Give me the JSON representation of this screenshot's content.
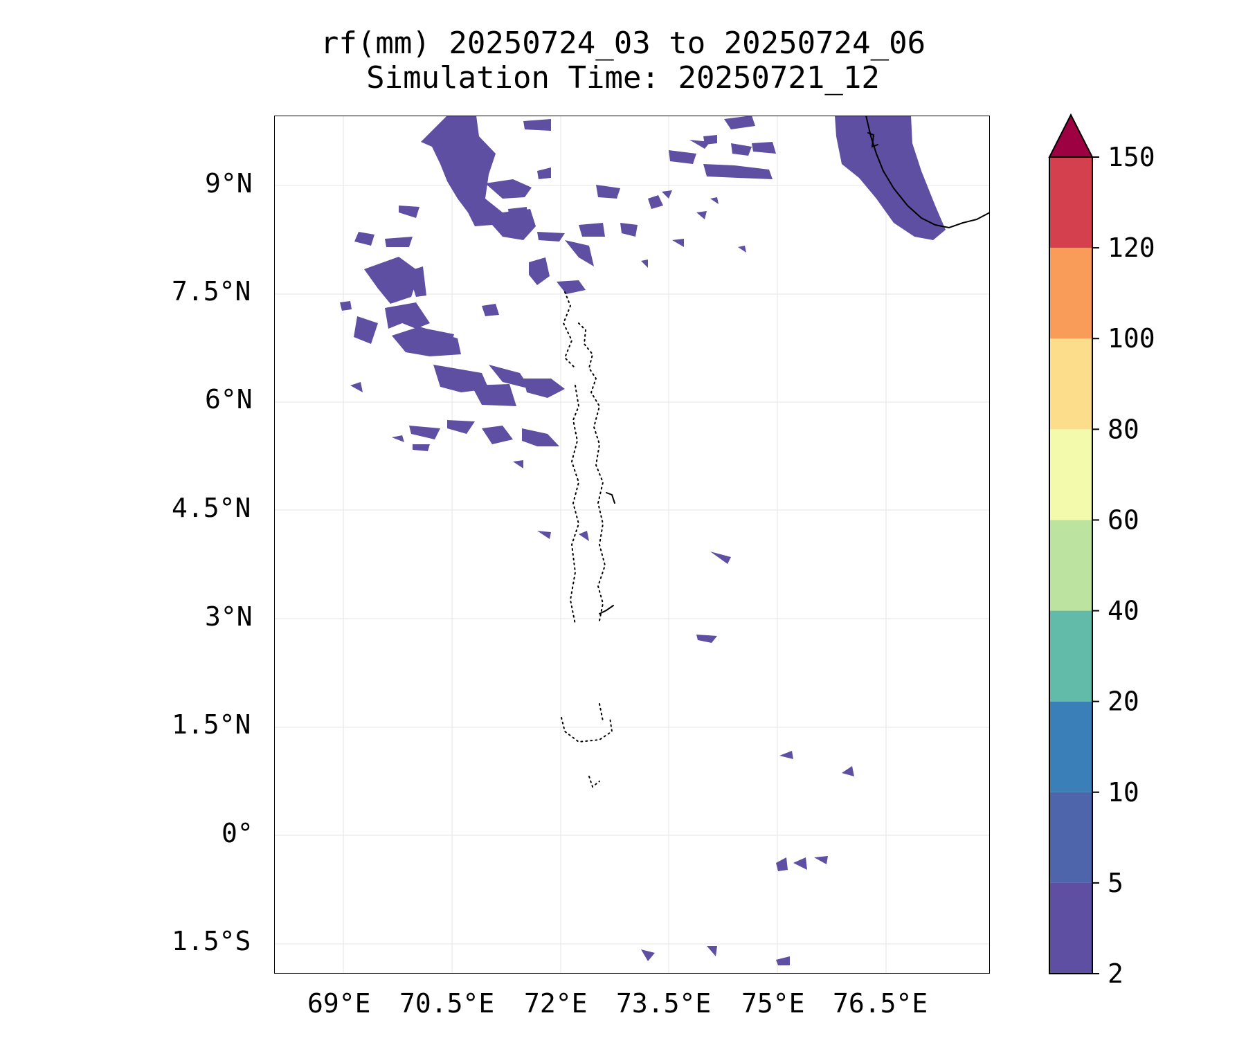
{
  "title": {
    "line1": "rf(mm) 20250724_03 to 20250724_06",
    "line2": "Simulation Time: 20250721_12"
  },
  "lat_labels": [
    "9°N",
    "7.5°N",
    "6°N",
    "4.5°N",
    "3°N",
    "1.5°N",
    "0°",
    "1.5°S"
  ],
  "lon_labels": [
    "69°E",
    "70.5°E",
    "72°E",
    "73.5°E",
    "75°E",
    "76.5°E"
  ],
  "colorbar": {
    "boundaries": [
      "2",
      "5",
      "10",
      "20",
      "40",
      "60",
      "80",
      "100",
      "120",
      "150"
    ],
    "colors": [
      "#5e4fa2",
      "#4e64ab",
      "#3a7fb8",
      "#62bba9",
      "#bde3a0",
      "#f3faab",
      "#fcdd8b",
      "#f99b59",
      "#d5404e"
    ],
    "extend_color": "#9e0142",
    "extend": "max"
  },
  "map": {
    "extent_lon": [
      68.05,
      77.95
    ],
    "extent_lat": [
      -1.9,
      10.0
    ],
    "rain_color": "#5e4fa2",
    "coast_color": "#000000"
  }
}
